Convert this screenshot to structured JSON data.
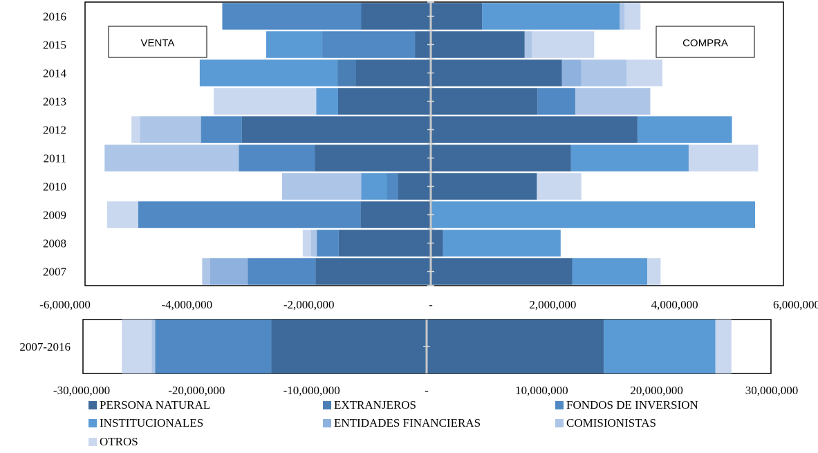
{
  "chart_data": [
    {
      "type": "bar",
      "orientation": "horizontal",
      "stacked": true,
      "diverging": true,
      "categories": [
        "2016",
        "2015",
        "2014",
        "2013",
        "2012",
        "2011",
        "2010",
        "2009",
        "2008",
        "2007"
      ],
      "xlim": [
        -6000000,
        6000000
      ],
      "xticks": [
        {
          "v": -6000000,
          "label": "-6,000,000"
        },
        {
          "v": -4000000,
          "label": "-4,000,000"
        },
        {
          "v": -2000000,
          "label": "-2,000,000"
        },
        {
          "v": 0,
          "label": "-"
        },
        {
          "v": 2000000,
          "label": "2,000,000"
        },
        {
          "v": 4000000,
          "label": "4,000,000"
        },
        {
          "v": 6000000,
          "label": "6,000,000"
        }
      ],
      "left_label": "VENTA",
      "right_label": "COMPRA",
      "venta": {
        "2016": [
          1140000,
          0,
          2280000,
          0,
          0,
          0,
          0
        ],
        "2015": [
          260000,
          0,
          1520000,
          920000,
          0,
          0,
          0
        ],
        "2014": [
          1230000,
          300000,
          0,
          2260000,
          0,
          0,
          0
        ],
        "2013": [
          1520000,
          0,
          0,
          360000,
          0,
          0,
          1680000
        ],
        "2012": [
          3100000,
          0,
          670000,
          0,
          0,
          1000000,
          140000
        ],
        "2011": [
          1900000,
          0,
          1250000,
          0,
          0,
          2200000,
          0
        ],
        "2010": [
          540000,
          0,
          180000,
          420000,
          0,
          1300000,
          0
        ],
        "2009": [
          1150000,
          0,
          3650000,
          0,
          0,
          0,
          510000
        ],
        "2008": [
          1510000,
          0,
          360000,
          0,
          0,
          100000,
          130000
        ],
        "2007": [
          1890000,
          0,
          1110000,
          0,
          620000,
          130000,
          0
        ]
      },
      "compra": {
        "2016": [
          840000,
          0,
          0,
          2260000,
          0,
          80000,
          260000
        ],
        "2015": [
          1540000,
          0,
          0,
          0,
          0,
          120000,
          1020000
        ],
        "2014": [
          2150000,
          0,
          0,
          0,
          320000,
          740000,
          590000
        ],
        "2013": [
          1750000,
          0,
          620000,
          0,
          0,
          1230000,
          0
        ],
        "2012": [
          3390000,
          0,
          0,
          1550000,
          0,
          0,
          0
        ],
        "2011": [
          2300000,
          0,
          0,
          1930000,
          0,
          0,
          1140000
        ],
        "2010": [
          1740000,
          0,
          0,
          0,
          0,
          0,
          730000
        ],
        "2009": [
          0,
          0,
          0,
          5320000,
          0,
          0,
          0
        ],
        "2008": [
          200000,
          0,
          0,
          1930000,
          0,
          0,
          0
        ],
        "2007": [
          2320000,
          0,
          0,
          1230000,
          0,
          0,
          220000
        ]
      }
    },
    {
      "type": "bar",
      "orientation": "horizontal",
      "stacked": true,
      "diverging": true,
      "categories": [
        "2007-2016"
      ],
      "xlim": [
        -30000000,
        30000000
      ],
      "xticks": [
        {
          "v": -30000000,
          "label": "-30,000,000"
        },
        {
          "v": -20000000,
          "label": "-20,000,000"
        },
        {
          "v": -10000000,
          "label": "-10,000,000"
        },
        {
          "v": 0,
          "label": "-"
        },
        {
          "v": 10000000,
          "label": "10,000,000"
        },
        {
          "v": 20000000,
          "label": "20,000,000"
        },
        {
          "v": 30000000,
          "label": "30,000,000"
        }
      ],
      "venta": {
        "2007-2016": [
          13500000,
          0,
          10100000,
          0,
          0,
          300000,
          2600000
        ]
      },
      "compra": {
        "2007-2016": [
          15400000,
          0,
          0,
          9700000,
          0,
          0,
          1400000
        ]
      }
    }
  ],
  "series": [
    {
      "name": "PERSONA NATURAL",
      "color": "#3d6a9a"
    },
    {
      "name": "EXTRANJEROS",
      "color": "#4a7fb5"
    },
    {
      "name": "FONDOS DE INVERSION",
      "color": "#5089c4"
    },
    {
      "name": "INSTITUCIONALES",
      "color": "#5b9bd5"
    },
    {
      "name": "ENTIDADES FINANCIERAS",
      "color": "#8eb1de"
    },
    {
      "name": "COMISIONISTAS",
      "color": "#adc5e7"
    },
    {
      "name": "OTROS",
      "color": "#c9d8ef"
    }
  ]
}
